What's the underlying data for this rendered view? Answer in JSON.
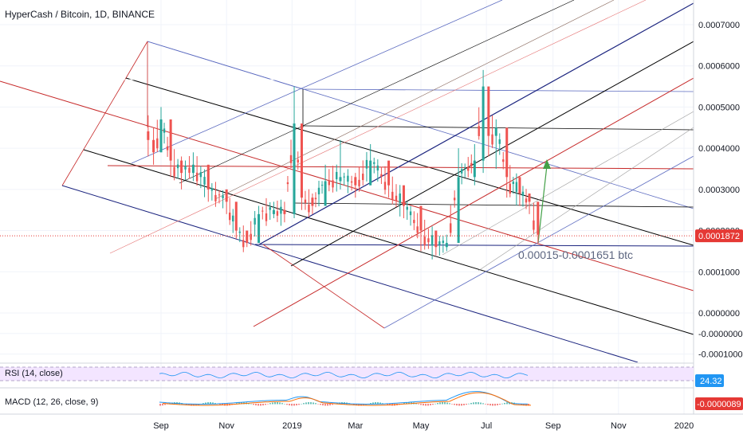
{
  "header": {
    "title": "HyperCash / Bitcoin, 1D, BINANCE"
  },
  "price_axis": {
    "ticks": [
      "0.0007000",
      "0.0006000",
      "0.0005000",
      "0.0004000",
      "0.0003000",
      "0.0002000",
      "0.0001000",
      "0.0000000",
      "-0.0000000",
      "-0.0001000"
    ],
    "tick_values": [
      0.0007,
      0.0006,
      0.0005,
      0.0004,
      0.0003,
      0.0002,
      0.0001,
      0.0,
      -5e-05,
      -0.0001
    ],
    "last_price": "0.0001872",
    "last_price_value": 0.0001872,
    "last_price_color": "#e53935"
  },
  "time_axis": {
    "labels": [
      "Sep",
      "Nov",
      "2019",
      "Mar",
      "May",
      "Jul",
      "Sep",
      "Nov",
      "2020"
    ],
    "label_dates": [
      "2018-09-01",
      "2018-11-01",
      "2019-01-01",
      "2019-03-01",
      "2019-05-01",
      "2019-07-01",
      "2019-09-01",
      "2019-11-01",
      "2020-01-01"
    ]
  },
  "annotation": {
    "text": "0.00015-0.0001651 btc"
  },
  "rsi": {
    "label": "RSI (14, close)",
    "value": "24.32",
    "color": "#2196f3",
    "band_color": "#f3e5ff"
  },
  "macd": {
    "label": "MACD (12, 26, close, 9)",
    "value": "-0.0000089",
    "value_color": "#e53935"
  },
  "colors": {
    "up": "#26a69a",
    "down": "#ef5350",
    "pitchfork_red": "#c62828",
    "pitchfork_blue": "#1a237e",
    "pitchfork_violet": "#5c6bc0",
    "pitchfork_black": "#000000",
    "arrow_green": "#43a047"
  },
  "chart_data": {
    "type": "candlestick",
    "title": "HyperCash / Bitcoin, 1D, BINANCE",
    "ylim": [
      -0.00012,
      0.00076
    ],
    "xlim": [
      "2018-08-01",
      "2020-01-20"
    ],
    "series": [
      {
        "name": "HyperCash / Bitcoin",
        "x": [
          "2018-08-20",
          "2018-08-25",
          "2018-09-01",
          "2018-09-10",
          "2018-09-20",
          "2018-10-01",
          "2018-10-15",
          "2018-11-01",
          "2018-11-10",
          "2018-11-20",
          "2018-12-01",
          "2018-12-15",
          "2018-12-25",
          "2019-01-03",
          "2019-01-10",
          "2019-01-20",
          "2019-02-01",
          "2019-02-15",
          "2019-03-01",
          "2019-03-15",
          "2019-04-01",
          "2019-04-15",
          "2019-05-01",
          "2019-05-15",
          "2019-05-25",
          "2019-06-05",
          "2019-06-20",
          "2019-06-28",
          "2019-07-03",
          "2019-07-10",
          "2019-07-20",
          "2019-08-01",
          "2019-08-10",
          "2019-08-18"
        ],
        "close": [
          0.00042,
          0.00039,
          0.00047,
          0.00037,
          0.00034,
          0.00036,
          0.0003,
          0.00027,
          0.0002,
          0.00017,
          0.00024,
          0.00025,
          0.00024,
          0.00046,
          0.00028,
          0.00026,
          0.00032,
          0.00033,
          0.00031,
          0.00037,
          0.00031,
          0.00026,
          0.0002,
          0.00016,
          0.00017,
          0.00033,
          0.00037,
          0.00055,
          0.00043,
          0.00045,
          0.00033,
          0.00029,
          0.00027,
          0.00019
        ],
        "high": [
          0.00048,
          0.00045,
          0.0005,
          0.0004,
          0.00038,
          0.00039,
          0.00032,
          0.00029,
          0.00023,
          0.0002,
          0.00026,
          0.00027,
          0.00027,
          0.00055,
          0.00033,
          0.00029,
          0.00036,
          0.00042,
          0.00034,
          0.00041,
          0.00034,
          0.00029,
          0.00023,
          0.00018,
          0.00019,
          0.0004,
          0.00041,
          0.00059,
          0.00047,
          0.00047,
          0.00036,
          0.00033,
          0.00029,
          0.00022
        ],
        "low": [
          0.00038,
          0.00036,
          0.00041,
          0.00033,
          0.0003,
          0.00032,
          0.00027,
          0.00024,
          0.00018,
          0.00016,
          0.00021,
          0.00023,
          0.00022,
          0.00023,
          0.00025,
          0.00024,
          0.00029,
          0.0003,
          0.00028,
          0.00031,
          0.00028,
          0.00023,
          0.00015,
          0.00014,
          0.00015,
          0.00022,
          0.00031,
          0.00034,
          0.00038,
          0.00035,
          0.00028,
          0.00026,
          0.00024,
          0.00017
        ]
      }
    ]
  }
}
